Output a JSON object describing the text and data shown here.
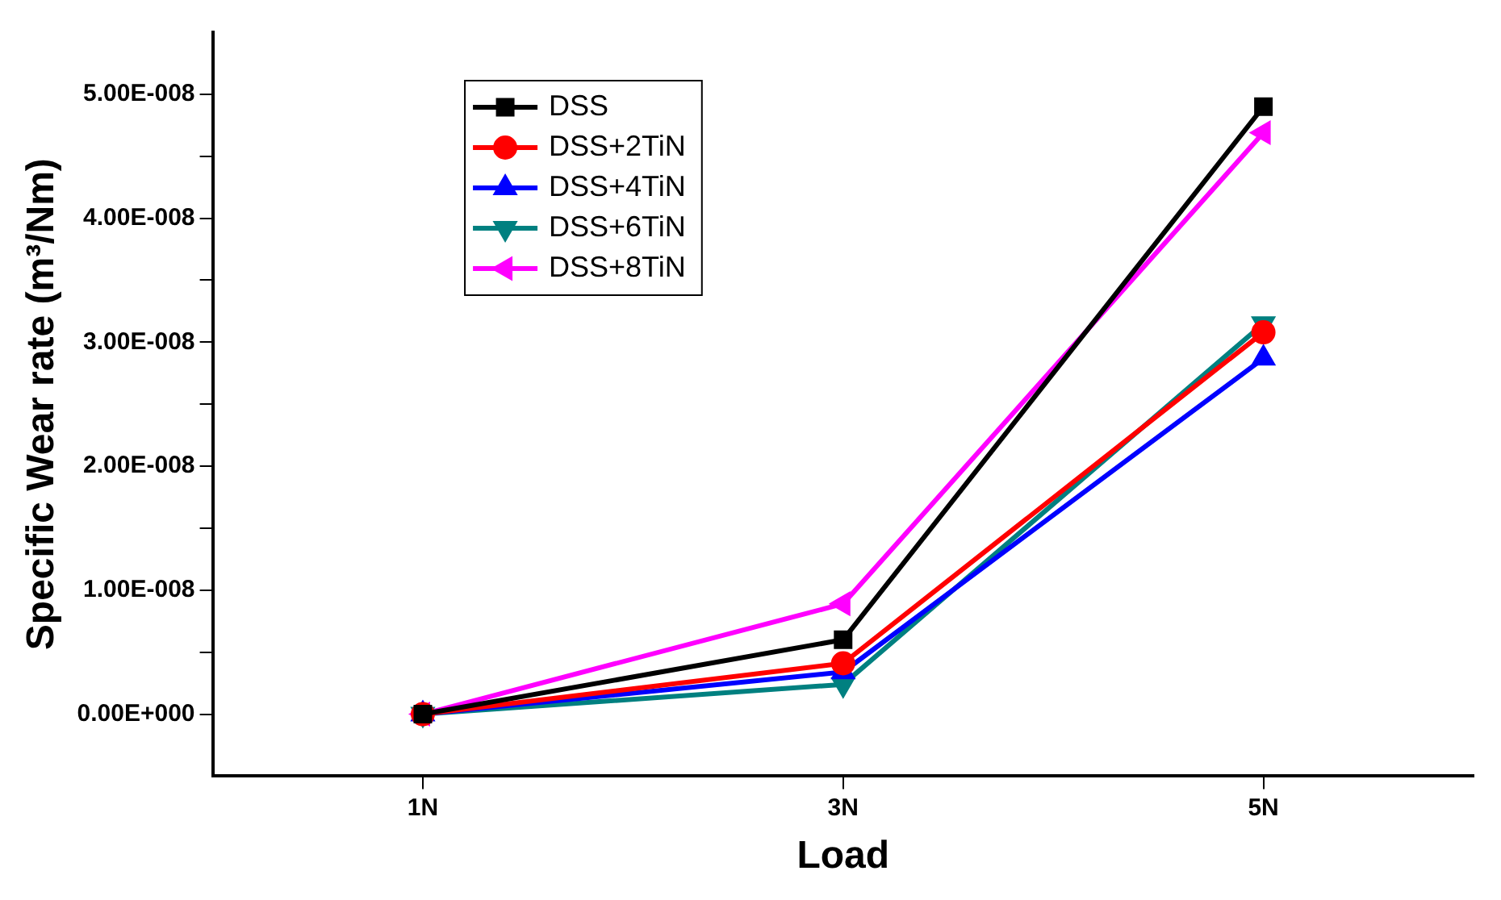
{
  "chart_data": {
    "type": "line",
    "xlabel": "Load",
    "ylabel": "Specific Wear rate (m³/Nm)",
    "categories": [
      "1N",
      "3N",
      "5N"
    ],
    "series": [
      {
        "name": "DSS",
        "color": "#000000",
        "marker": "square",
        "values": [
          0,
          6e-09,
          4.9e-08
        ]
      },
      {
        "name": "DSS+2TiN",
        "color": "#ff0000",
        "marker": "circle",
        "values": [
          0,
          4.1e-09,
          3.08e-08
        ]
      },
      {
        "name": "DSS+4TiN",
        "color": "#0000ff",
        "marker": "triangle",
        "values": [
          0,
          3.4e-09,
          2.87e-08
        ]
      },
      {
        "name": "DSS+6TiN",
        "color": "#008080",
        "marker": "triangle-down",
        "values": [
          0,
          2.4e-09,
          3.15e-08
        ]
      },
      {
        "name": "DSS+8TiN",
        "color": "#ff00ff",
        "marker": "triangle-left",
        "values": [
          0,
          8.9e-09,
          4.69e-08
        ]
      }
    ],
    "ylim": [
      -5e-09,
      5.5e-08
    ],
    "yticks": [
      {
        "value": 0,
        "label": "0.00E+000"
      },
      {
        "value": 5e-09,
        "label": null
      },
      {
        "value": 1e-08,
        "label": "1.00E-008"
      },
      {
        "value": 1.5e-08,
        "label": null
      },
      {
        "value": 2e-08,
        "label": "2.00E-008"
      },
      {
        "value": 2.5e-08,
        "label": null
      },
      {
        "value": 3e-08,
        "label": "3.00E-008"
      },
      {
        "value": 3.5e-08,
        "label": null
      },
      {
        "value": 4e-08,
        "label": "4.00E-008"
      },
      {
        "value": 4.5e-08,
        "label": null
      },
      {
        "value": 5e-08,
        "label": "5.00E-008"
      }
    ],
    "grid": false,
    "legend": "top",
    "line_style": "solid"
  }
}
